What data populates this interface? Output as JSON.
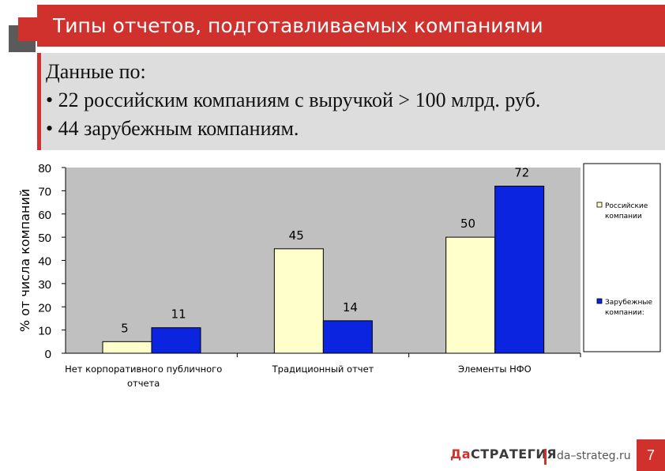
{
  "header": {
    "title": "Типы отчетов, подготавливаемых компаниями"
  },
  "info": {
    "lines": [
      "Данные по:",
      "• 22 российским компаниям с выручкой > 100 млрд. руб.",
      "• 44 зарубежным компаниям."
    ]
  },
  "chart_data": {
    "type": "bar",
    "categories": [
      "Нет корпоративного публичного отчета",
      "Традиционный отчет",
      "Элементы НФО"
    ],
    "category_lines": [
      [
        "Нет корпоративного публичного",
        "отчета"
      ],
      [
        "Традиционный отчет"
      ],
      [
        "Элементы НФО"
      ]
    ],
    "series": [
      {
        "name": "Российские компании",
        "name_lines": [
          "Российские",
          "компании"
        ],
        "values": [
          5,
          45,
          50
        ],
        "color": "#ffffcc"
      },
      {
        "name": "Зарубежные компании:",
        "name_lines": [
          "Зарубежные",
          "компании:"
        ],
        "values": [
          11,
          14,
          72
        ],
        "color": "#0a24e0"
      }
    ],
    "ylabel": "% от числа компаний",
    "ylim": [
      0,
      80
    ],
    "yticks": [
      0,
      10,
      20,
      30,
      40,
      50,
      60,
      70,
      80
    ],
    "grid": false,
    "plot_background": "#c0c0c0",
    "legend_position": "right"
  },
  "footer": {
    "logo_da": "Да",
    "logo_rest": "Стратегия",
    "url": "da–strateg.ru",
    "page": "7"
  }
}
